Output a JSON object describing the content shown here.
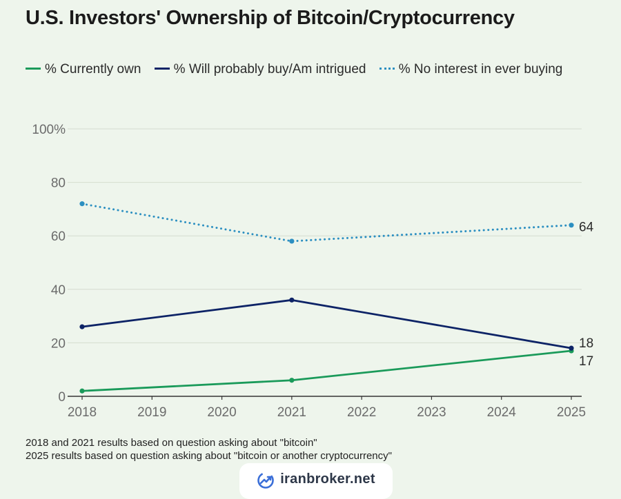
{
  "title": "U.S. Investors' Ownership of Bitcoin/Cryptocurrency",
  "chart_data": {
    "type": "line",
    "title": "U.S. Investors' Ownership of Bitcoin/Cryptocurrency",
    "xlabel": "",
    "ylabel": "",
    "x_ticks": [
      "2018",
      "2019",
      "2020",
      "2021",
      "2022",
      "2023",
      "2024",
      "2025"
    ],
    "xlim": [
      2018,
      2025
    ],
    "y_ticks": [
      "0",
      "20",
      "40",
      "60",
      "80",
      "100%"
    ],
    "y_tick_values": [
      0,
      20,
      40,
      60,
      80,
      100
    ],
    "ylim": [
      0,
      100
    ],
    "grid": true,
    "legend_position": "top",
    "series": [
      {
        "name": "% Currently own",
        "color": "#1a9a5a",
        "style": "solid",
        "x": [
          2018,
          2021,
          2025
        ],
        "values": [
          2,
          6,
          17
        ],
        "end_label": "17"
      },
      {
        "name": "% Will probably buy/Am intrigued",
        "color": "#0d2366",
        "style": "solid",
        "x": [
          2018,
          2021,
          2025
        ],
        "values": [
          26,
          36,
          18
        ],
        "end_label": "18"
      },
      {
        "name": "% No interest in ever buying",
        "color": "#2c8fc1",
        "style": "dotted",
        "x": [
          2018,
          2021,
          2025
        ],
        "values": [
          72,
          58,
          64
        ],
        "end_label": "64"
      }
    ]
  },
  "footnotes": [
    "2018 and 2021 results based on question asking about \"bitcoin\"",
    "2025 results based on question asking about \"bitcoin or another cryptocurrency\""
  ],
  "brand": {
    "text": "iranbroker.net",
    "icon": "chart-trend-icon",
    "color": "#3b6fd8"
  }
}
